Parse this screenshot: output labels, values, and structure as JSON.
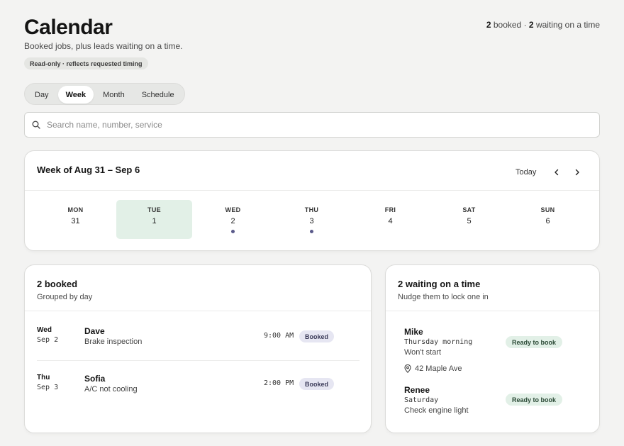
{
  "header": {
    "title": "Calendar",
    "subtitle": "Booked jobs, plus leads waiting on a time.",
    "readonly_note": "Read-only · reflects requested timing",
    "summary": {
      "booked_count": "2",
      "booked_label": "booked",
      "separator": "·",
      "waiting_count": "2",
      "waiting_label": "waiting on a time"
    }
  },
  "views": {
    "selected": "Week",
    "options": [
      "Day",
      "Week",
      "Month",
      "Schedule"
    ]
  },
  "search": {
    "placeholder": "Search name, number, service",
    "value": "",
    "icon": "search-icon"
  },
  "week": {
    "title": "Week of Aug 31 – Sep 6",
    "today_label": "Today",
    "prev_icon": "chevron-left-icon",
    "next_icon": "chevron-right-icon",
    "days": [
      {
        "name": "MON",
        "num": "31",
        "today": false,
        "has_event": false
      },
      {
        "name": "TUE",
        "num": "1",
        "today": true,
        "has_event": false
      },
      {
        "name": "WED",
        "num": "2",
        "today": false,
        "has_event": true
      },
      {
        "name": "THU",
        "num": "3",
        "today": false,
        "has_event": true
      },
      {
        "name": "FRI",
        "num": "4",
        "today": false,
        "has_event": false
      },
      {
        "name": "SAT",
        "num": "5",
        "today": false,
        "has_event": false
      },
      {
        "name": "SUN",
        "num": "6",
        "today": false,
        "has_event": false
      }
    ],
    "today_color": "#e2f0e7",
    "event_dot_color": "#5a5a8a"
  },
  "booked": {
    "title": "2 booked",
    "subtitle": "Grouped by day",
    "rows": [
      {
        "day": "Wed",
        "date": "Sep 2",
        "name": "Dave",
        "service": "Brake inspection",
        "time": "9:00 AM",
        "status": "Booked"
      },
      {
        "day": "Thu",
        "date": "Sep 3",
        "name": "Sofia",
        "service": "A/C not cooling",
        "time": "2:00 PM",
        "status": "Booked"
      }
    ]
  },
  "waiting": {
    "title": "2 waiting on a time",
    "subtitle": "Nudge them to lock one in",
    "leads": [
      {
        "name": "Mike",
        "preference": "Thursday morning",
        "service": "Won't start",
        "status": "Ready to book",
        "address": "42 Maple Ave",
        "address_icon": "map-pin-icon"
      },
      {
        "name": "Renee",
        "preference": "Saturday",
        "service": "Check engine light",
        "status": "Ready to book"
      }
    ]
  }
}
